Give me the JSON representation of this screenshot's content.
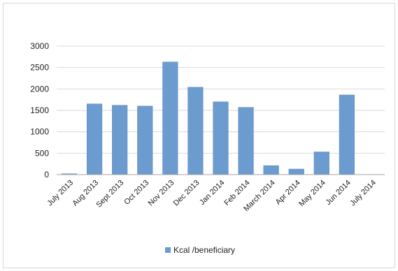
{
  "chart_data": {
    "type": "bar",
    "categories": [
      "July 2013",
      "Aug 2013",
      "Sept 2013",
      "Oct 2013",
      "Nov 2013",
      "Dec 2013",
      "Jan 2014",
      "Feb 2014",
      "March 2014",
      "Apr 2014",
      "May 2014",
      "Jun 2014",
      "July 2014"
    ],
    "series": [
      {
        "name": "Kcal /beneficiary",
        "values": [
          20,
          1650,
          1620,
          1600,
          2630,
          2040,
          1700,
          1570,
          210,
          130,
          530,
          1860,
          0
        ]
      }
    ],
    "yticks": [
      "0",
      "500",
      "1000",
      "1500",
      "2000",
      "2500",
      "3000"
    ],
    "ylim": [
      0,
      3000
    ],
    "grid": true,
    "legend_position": "bottom",
    "colors": {
      "bar": "#6b9bcf",
      "bar_edge": "#5a88bb",
      "grid": "#d9d9d9",
      "axis": "#a6a6a6"
    }
  }
}
